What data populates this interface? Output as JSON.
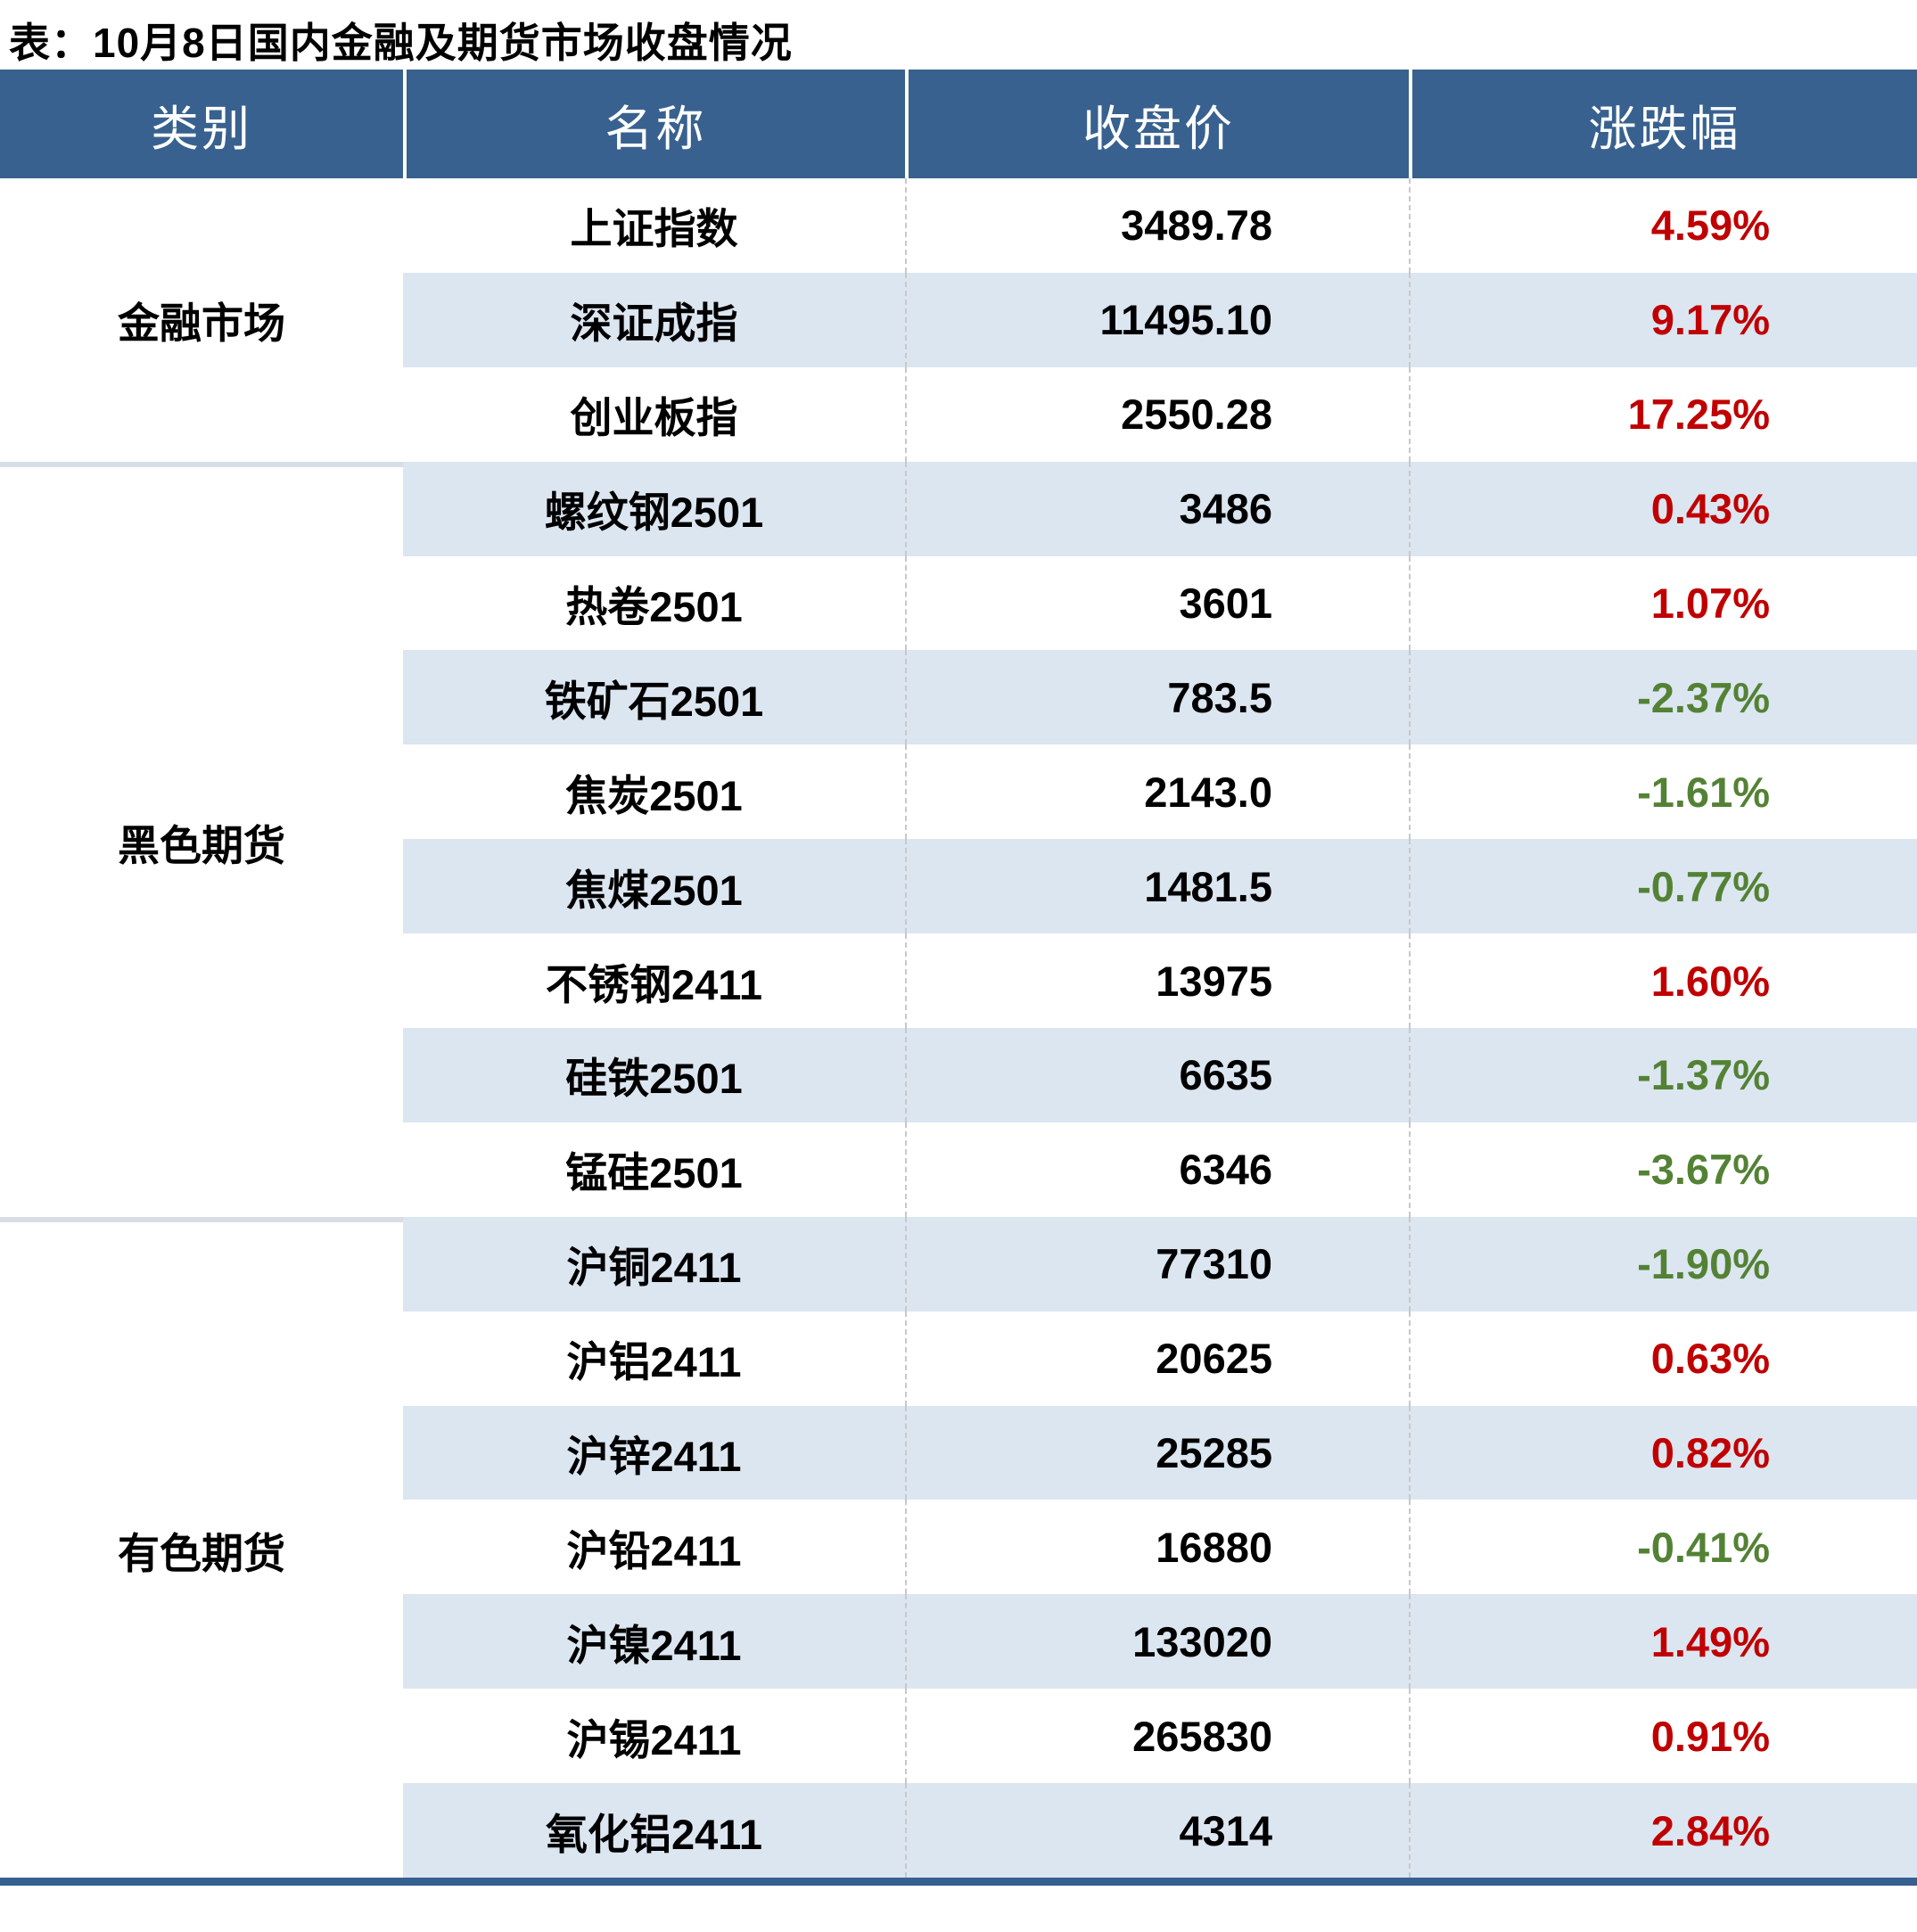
{
  "title": "表：10月8日国内金融及期货市场收盘情况",
  "table": {
    "columns": [
      "类别",
      "名称",
      "收盘价",
      "涨跌幅"
    ],
    "groups": [
      {
        "category": "金融市场",
        "rows": [
          {
            "name": "上证指数",
            "close": "3489.78",
            "change": "4.59%",
            "direction": "up"
          },
          {
            "name": "深证成指",
            "close": "11495.10",
            "change": "9.17%",
            "direction": "up"
          },
          {
            "name": "创业板指",
            "close": "2550.28",
            "change": "17.25%",
            "direction": "up"
          }
        ]
      },
      {
        "category": "黑色期货",
        "rows": [
          {
            "name": "螺纹钢2501",
            "close": "3486",
            "change": "0.43%",
            "direction": "up"
          },
          {
            "name": "热卷2501",
            "close": "3601",
            "change": "1.07%",
            "direction": "up"
          },
          {
            "name": "铁矿石2501",
            "close": "783.5",
            "change": "-2.37%",
            "direction": "down"
          },
          {
            "name": "焦炭2501",
            "close": "2143.0",
            "change": "-1.61%",
            "direction": "down"
          },
          {
            "name": "焦煤2501",
            "close": "1481.5",
            "change": "-0.77%",
            "direction": "down"
          },
          {
            "name": "不锈钢2411",
            "close": "13975",
            "change": "1.60%",
            "direction": "up"
          },
          {
            "name": "硅铁2501",
            "close": "6635",
            "change": "-1.37%",
            "direction": "down"
          },
          {
            "name": "锰硅2501",
            "close": "6346",
            "change": "-3.67%",
            "direction": "down"
          }
        ]
      },
      {
        "category": "有色期货",
        "rows": [
          {
            "name": "沪铜2411",
            "close": "77310",
            "change": "-1.90%",
            "direction": "down"
          },
          {
            "name": "沪铝2411",
            "close": "20625",
            "change": "0.63%",
            "direction": "up"
          },
          {
            "name": "沪锌2411",
            "close": "25285",
            "change": "0.82%",
            "direction": "up"
          },
          {
            "name": "沪铅2411",
            "close": "16880",
            "change": "-0.41%",
            "direction": "down"
          },
          {
            "name": "沪镍2411",
            "close": "133020",
            "change": "1.49%",
            "direction": "up"
          },
          {
            "name": "沪锡2411",
            "close": "265830",
            "change": "0.91%",
            "direction": "up"
          },
          {
            "name": "氧化铝2411",
            "close": "4314",
            "change": "2.84%",
            "direction": "up"
          }
        ]
      }
    ]
  },
  "chart_data": {
    "type": "table",
    "title": "表：10月8日国内金融及期货市场收盘情况",
    "columns": [
      "类别",
      "名称",
      "收盘价",
      "涨跌幅"
    ],
    "rows": [
      [
        "金融市场",
        "上证指数",
        3489.78,
        "4.59%"
      ],
      [
        "金融市场",
        "深证成指",
        11495.1,
        "9.17%"
      ],
      [
        "金融市场",
        "创业板指",
        2550.28,
        "17.25%"
      ],
      [
        "黑色期货",
        "螺纹钢2501",
        3486,
        "0.43%"
      ],
      [
        "黑色期货",
        "热卷2501",
        3601,
        "1.07%"
      ],
      [
        "黑色期货",
        "铁矿石2501",
        783.5,
        "-2.37%"
      ],
      [
        "黑色期货",
        "焦炭2501",
        2143.0,
        "-1.61%"
      ],
      [
        "黑色期货",
        "焦煤2501",
        1481.5,
        "-0.77%"
      ],
      [
        "黑色期货",
        "不锈钢2411",
        13975,
        "1.60%"
      ],
      [
        "黑色期货",
        "硅铁2501",
        6635,
        "-1.37%"
      ],
      [
        "黑色期货",
        "锰硅2501",
        6346,
        "-3.67%"
      ],
      [
        "有色期货",
        "沪铜2411",
        77310,
        "-1.90%"
      ],
      [
        "有色期货",
        "沪铝2411",
        20625,
        "0.63%"
      ],
      [
        "有色期货",
        "沪锌2411",
        25285,
        "0.82%"
      ],
      [
        "有色期货",
        "沪铅2411",
        16880,
        "-0.41%"
      ],
      [
        "有色期货",
        "沪镍2411",
        133020,
        "1.49%"
      ],
      [
        "有色期货",
        "沪锡2411",
        265830,
        "0.91%"
      ],
      [
        "有色期货",
        "氧化铝2411",
        4314,
        "2.84%"
      ]
    ]
  },
  "colors": {
    "header_bg": "#38618F",
    "row_alt_bg": "#DCE6F1",
    "up_red": "#C00000",
    "down_green": "#548235",
    "category_divider": "#D8DEE6",
    "column_separator": "#C6C8CB",
    "bottom_bar": "#35608F"
  }
}
